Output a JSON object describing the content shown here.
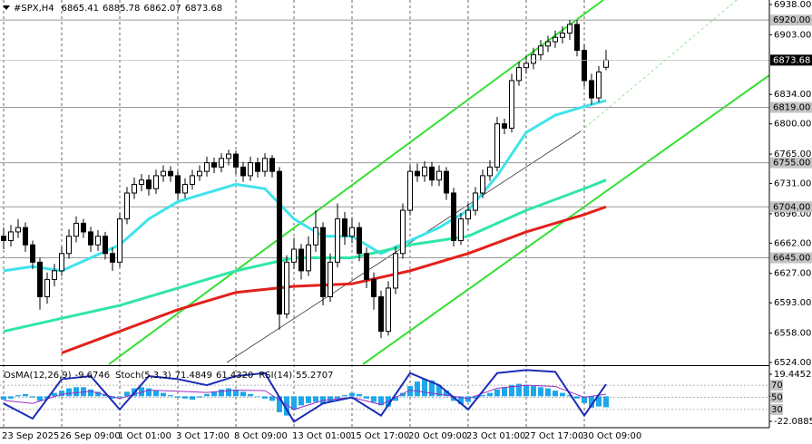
{
  "chart_data": [
    {
      "type": "candlestick",
      "symbol": "#SPX,H4",
      "color": "#000000",
      "up_color": "#ffffff",
      "open": [
        6670,
        6665,
        6675,
        6680,
        6660,
        6640,
        6600,
        6620,
        6630,
        6650,
        6670,
        6685,
        6675,
        6660,
        6670,
        6650,
        6640,
        6690,
        6720,
        6730,
        6735,
        6725,
        6740,
        6745,
        6740,
        6720,
        6730,
        6740,
        6745,
        6755,
        6750,
        6760,
        6765,
        6750,
        6740,
        6755,
        6745,
        6760,
        6745,
        6580,
        6640,
        6655,
        6630,
        6660,
        6680,
        6600,
        6640,
        6690,
        6670,
        6680,
        6650,
        6620,
        6600,
        6560,
        6610,
        6650,
        6700,
        6745,
        6740,
        6750,
        6735,
        6745,
        6720,
        6665,
        6690,
        6700,
        6720,
        6740,
        6750,
        6800,
        6795,
        6850,
        6865,
        6870,
        6880,
        6890,
        6895,
        6900,
        6905,
        6915,
        6885,
        6850,
        6830,
        6865.41
      ],
      "high": [
        6680,
        6683,
        6690,
        6686,
        6665,
        6645,
        6628,
        6638,
        6658,
        6678,
        6693,
        6690,
        6681,
        6677,
        6675,
        6657,
        6697,
        6727,
        6738,
        6742,
        6741,
        6747,
        6752,
        6751,
        6745,
        6737,
        6747,
        6752,
        6762,
        6761,
        6766,
        6770,
        6769,
        6756,
        6762,
        6761,
        6766,
        6764,
        6750,
        6648,
        6668,
        6661,
        6670,
        6700,
        6686,
        6650,
        6708,
        6698,
        6692,
        6686,
        6657,
        6628,
        6607,
        6618,
        6658,
        6708,
        6752,
        6754,
        6757,
        6756,
        6752,
        6750,
        6726,
        6697,
        6708,
        6727,
        6747,
        6758,
        6808,
        6806,
        6858,
        6872,
        6878,
        6888,
        6897,
        6902,
        6908,
        6913,
        6920,
        6920,
        6892,
        6858,
        6867,
        6885.78
      ],
      "low": [
        6655,
        6658,
        6668,
        6652,
        6632,
        6585,
        6592,
        6612,
        6624,
        6644,
        6663,
        6668,
        6652,
        6653,
        6643,
        6630,
        6634,
        6684,
        6713,
        6722,
        6717,
        6719,
        6733,
        6733,
        6712,
        6714,
        6724,
        6734,
        6739,
        6743,
        6744,
        6752,
        6742,
        6733,
        6734,
        6738,
        6739,
        6738,
        6562,
        6575,
        6632,
        6620,
        6624,
        6652,
        6590,
        6594,
        6634,
        6660,
        6662,
        6641,
        6610,
        6585,
        6552,
        6555,
        6603,
        6644,
        6694,
        6733,
        6733,
        6728,
        6728,
        6712,
        6658,
        6660,
        6684,
        6694,
        6714,
        6734,
        6745,
        6788,
        6790,
        6844,
        6858,
        6863,
        6873,
        6883,
        6888,
        6893,
        6897,
        6878,
        6843,
        6822,
        6825,
        6862.07
      ],
      "close": [
        6665,
        6675,
        6680,
        6660,
        6640,
        6600,
        6620,
        6630,
        6650,
        6670,
        6685,
        6675,
        6660,
        6670,
        6650,
        6640,
        6690,
        6720,
        6730,
        6735,
        6725,
        6740,
        6745,
        6740,
        6720,
        6730,
        6740,
        6745,
        6755,
        6750,
        6760,
        6765,
        6750,
        6740,
        6755,
        6745,
        6760,
        6745,
        6580,
        6640,
        6655,
        6630,
        6660,
        6680,
        6600,
        6640,
        6690,
        6670,
        6680,
        6650,
        6620,
        6600,
        6560,
        6610,
        6650,
        6700,
        6745,
        6740,
        6750,
        6735,
        6745,
        6720,
        6665,
        6690,
        6700,
        6720,
        6740,
        6750,
        6800,
        6795,
        6850,
        6865,
        6870,
        6880,
        6890,
        6895,
        6900,
        6905,
        6915,
        6885,
        6850,
        6830,
        6860,
        6873.68
      ],
      "xlim": [
        -0.5,
        105.5
      ],
      "xticks": [
        {
          "value": 0,
          "label": "23 Sep 2025"
        },
        {
          "value": 8,
          "label": "26 Sep 09:00"
        },
        {
          "value": 16,
          "label": "1 Oct 01:00"
        },
        {
          "value": 24,
          "label": "3 Oct 17:00"
        },
        {
          "value": 32,
          "label": "8 Oct 09:00"
        },
        {
          "value": 40,
          "label": "13 Oct 01:00"
        },
        {
          "value": 48,
          "label": "15 Oct 17:00"
        },
        {
          "value": 56,
          "label": "20 Oct 09:00"
        },
        {
          "value": 64,
          "label": "23 Oct 01:00"
        },
        {
          "value": 72,
          "label": "27 Oct 17:00"
        },
        {
          "value": 80,
          "label": "30 Oct 09:00"
        }
      ],
      "ylim": [
        6524,
        6938
      ],
      "yticks": [
        {
          "value": 6938,
          "label": "6938.00"
        },
        {
          "value": 6903,
          "label": "6903.00"
        },
        {
          "value": 6834,
          "label": "6834.00"
        },
        {
          "value": 6800,
          "label": "6800.00"
        },
        {
          "value": 6765,
          "label": "6765.00"
        },
        {
          "value": 6731,
          "label": "6731.00"
        },
        {
          "value": 6696,
          "label": "6696.00"
        },
        {
          "value": 6662,
          "label": "6662.00"
        },
        {
          "value": 6627,
          "label": "6627.00"
        },
        {
          "value": 6593,
          "label": "6593.00"
        },
        {
          "value": 6558,
          "label": "6558.00"
        },
        {
          "value": 6524,
          "label": "6524.00"
        }
      ],
      "levels": [
        {
          "value": 6920,
          "label": "6920.00"
        },
        {
          "value": 6819,
          "label": "6819.00"
        },
        {
          "value": 6755,
          "label": "6755.00"
        },
        {
          "value": 6704,
          "label": "6704.00"
        },
        {
          "value": 6645,
          "label": "6645.00"
        }
      ],
      "moving_averages": [
        {
          "color": "#3fe3ec",
          "x": [
            0,
            4,
            8,
            12,
            16,
            20,
            24,
            28,
            32,
            36,
            40,
            44,
            48,
            52,
            56,
            60,
            64,
            68,
            72,
            76,
            80,
            83
          ],
          "values": [
            6630,
            6635,
            6630,
            6645,
            6660,
            6690,
            6710,
            6720,
            6730,
            6725,
            6690,
            6670,
            6670,
            6650,
            6665,
            6680,
            6700,
            6740,
            6790,
            6810,
            6820,
            6827
          ]
        },
        {
          "color": "#2fe6a6",
          "x": [
            0,
            8,
            16,
            24,
            32,
            40,
            48,
            56,
            64,
            72,
            80,
            83
          ],
          "values": [
            6560,
            6575,
            6590,
            6610,
            6630,
            6645,
            6645,
            6660,
            6670,
            6700,
            6725,
            6735
          ]
        },
        {
          "color": "#e3201b",
          "x": [
            8,
            16,
            24,
            32,
            40,
            48,
            56,
            64,
            72,
            80,
            83
          ],
          "values": [
            6535,
            6560,
            6585,
            6605,
            6612,
            6615,
            6630,
            6650,
            6675,
            6695,
            6704
          ]
        }
      ]
    },
    {
      "type": "oscillator",
      "ylim": [
        -22.0885,
        19.4452
      ],
      "yticks": [
        19.4452,
        0,
        -22.0885
      ],
      "y2lim": [
        0,
        100
      ],
      "y2ticks": [
        70,
        50,
        30
      ],
      "osma": {
        "label": "OsMA(12,26,9)",
        "color": "#1ea7ea",
        "values": [
          -3,
          -2,
          1,
          2,
          -1,
          -4,
          -2,
          3,
          5,
          7,
          8,
          8,
          6,
          4,
          2,
          -2,
          -1,
          4,
          7,
          8,
          7,
          5,
          3,
          1,
          -1,
          -2,
          -3,
          -1,
          2,
          4,
          6,
          7,
          6,
          4,
          2,
          0,
          -2,
          -4,
          -14,
          -17,
          -12,
          -8,
          -6,
          -5,
          -7,
          -5,
          -2,
          1,
          3,
          2,
          -2,
          -5,
          -8,
          -9,
          -4,
          3,
          9,
          13,
          15,
          14,
          10,
          5,
          -4,
          -7,
          -5,
          -2,
          1,
          3,
          6,
          8,
          10,
          11,
          10,
          9,
          8,
          7,
          5,
          3,
          1,
          -2,
          -6,
          -10,
          -9,
          -9.6746
        ]
      },
      "stoch": {
        "label": "Stoch(5,3,3)",
        "color": "#1c2cb8",
        "axis": "y2",
        "x": [
          0,
          4,
          8,
          12,
          16,
          20,
          24,
          28,
          32,
          36,
          40,
          44,
          48,
          52,
          56,
          60,
          64,
          68,
          72,
          76,
          80,
          83
        ],
        "values": [
          40,
          15,
          80,
          85,
          30,
          85,
          80,
          70,
          85,
          90,
          10,
          40,
          50,
          20,
          90,
          70,
          30,
          90,
          95,
          92,
          20,
          71.4849
        ],
        "signal": {
          "value": 61.432,
          "label": "61.4320"
        }
      },
      "rsi": {
        "label": "RSI(14)",
        "color": "#9a2fc4",
        "axis": "y2",
        "x": [
          0,
          4,
          8,
          12,
          16,
          20,
          24,
          28,
          32,
          36,
          40,
          44,
          48,
          52,
          56,
          60,
          64,
          68,
          72,
          76,
          80,
          83
        ],
        "values": [
          45,
          40,
          55,
          60,
          48,
          62,
          60,
          58,
          62,
          61,
          30,
          45,
          50,
          38,
          62,
          55,
          48,
          65,
          70,
          68,
          50,
          55.2707
        ]
      }
    }
  ]
}
